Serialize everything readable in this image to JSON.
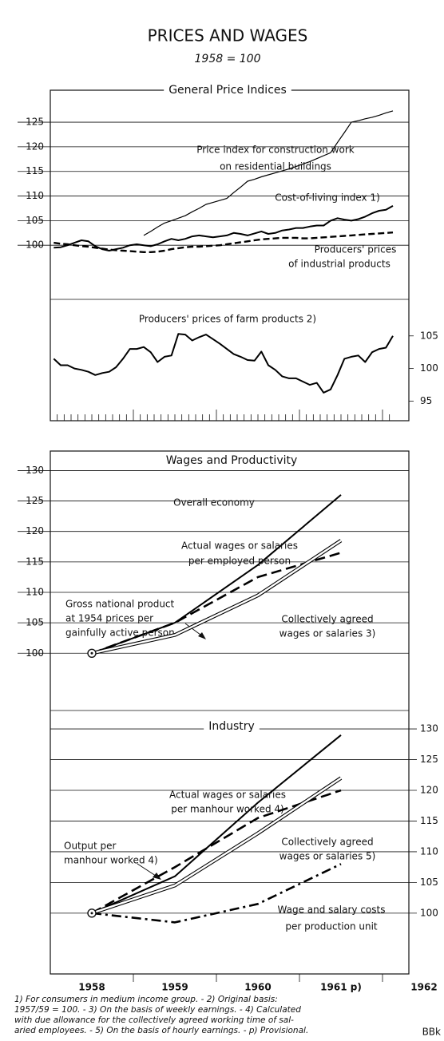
{
  "title": "PRICES AND WAGES",
  "subtitle": "1958 = 100",
  "chart_data": [
    {
      "type": "line",
      "title": "General Price Indices",
      "categories": [
        null,
        null,
        null,
        null,
        null,
        null,
        null,
        null,
        null,
        null,
        null,
        null,
        null,
        null,
        null,
        null,
        null,
        null,
        null,
        null,
        null,
        null,
        null,
        null,
        null,
        null,
        null,
        null,
        null,
        null,
        null,
        null,
        null,
        null,
        null,
        null,
        null,
        null,
        null,
        null,
        null,
        null,
        null,
        null,
        null,
        null,
        null,
        null,
        null,
        null
      ],
      "ylim": [
        89,
        131.5
      ],
      "yticks": [
        100,
        105,
        110,
        115,
        120,
        125
      ],
      "grid": true,
      "axis_side": "left",
      "series": [
        {
          "name": [
            "Price index for construction work",
            "on residential buildings"
          ],
          "color": "#000000",
          "style": "solid",
          "values": [
            null,
            null,
            null,
            null,
            null,
            null,
            null,
            null,
            null,
            null,
            null,
            null,
            null,
            102,
            102.8,
            103.7,
            104.5,
            105,
            105.5,
            106,
            106.8,
            107.5,
            108.3,
            108.7,
            109.1,
            109.5,
            110.7,
            111.8,
            113,
            113.4,
            113.9,
            114.3,
            114.7,
            115.1,
            115.5,
            116,
            116.5,
            117,
            117.6,
            118.2,
            118.8,
            120.9,
            122.9,
            125,
            125.3,
            125.7,
            126,
            126.4,
            126.9,
            127.3
          ]
        },
        {
          "name": [
            "Cost-of-living index 1)"
          ],
          "color": "#000000",
          "style": "solid-bold",
          "values": [
            99.5,
            99.6,
            100.0,
            100.5,
            101.0,
            100.8,
            99.8,
            99.2,
            98.9,
            99.2,
            99.5,
            100.0,
            100.2,
            100.0,
            99.8,
            100.2,
            100.8,
            101.3,
            101.0,
            101.3,
            101.8,
            102.0,
            101.8,
            101.6,
            101.8,
            102.0,
            102.5,
            102.3,
            102.0,
            102.4,
            102.8,
            102.3,
            102.5,
            103.0,
            103.2,
            103.5,
            103.5,
            103.8,
            104.0,
            104.0,
            105.0,
            105.5,
            105.2,
            105.0,
            105.3,
            105.8,
            106.5,
            107.0,
            107.2,
            108.0
          ]
        },
        {
          "name": [
            "Producers' prices",
            "of industrial products"
          ],
          "color": "#000000",
          "style": "dashed",
          "values": [
            100.5,
            100.3,
            100.2,
            100.0,
            99.8,
            99.7,
            99.5,
            99.3,
            99.1,
            99.0,
            98.9,
            98.8,
            98.7,
            98.6,
            98.6,
            98.7,
            98.9,
            99.2,
            99.4,
            99.6,
            99.7,
            99.7,
            99.8,
            99.9,
            100.0,
            100.2,
            100.4,
            100.6,
            100.8,
            101.0,
            101.2,
            101.3,
            101.4,
            101.5,
            101.5,
            101.5,
            101.4,
            101.4,
            101.5,
            101.6,
            101.7,
            101.8,
            101.9,
            102.0,
            102.1,
            102.2,
            102.3,
            102.4,
            102.5,
            102.6
          ]
        }
      ]
    },
    {
      "type": "line",
      "categories": [
        null,
        null,
        null,
        null,
        null,
        null,
        null,
        null,
        null,
        null,
        null,
        null,
        null,
        null,
        null,
        null,
        null,
        null,
        null,
        null,
        null,
        null,
        null,
        null,
        null,
        null,
        null,
        null,
        null,
        null,
        null,
        null,
        null,
        null,
        null,
        null,
        null,
        null,
        null,
        null,
        null,
        null,
        null,
        null,
        null,
        null,
        null,
        null,
        null,
        null
      ],
      "ylim": [
        92,
        110.6
      ],
      "yticks": [
        95,
        100,
        105
      ],
      "grid": false,
      "axis_side": "right",
      "series": [
        {
          "name": [
            "Producers' prices of farm products 2)"
          ],
          "color": "#000000",
          "style": "solid-bold",
          "values": [
            101.5,
            100.5,
            100.5,
            100.0,
            99.8,
            99.5,
            99.0,
            99.3,
            99.5,
            100.2,
            101.5,
            103.0,
            103.0,
            103.3,
            102.5,
            101.0,
            101.8,
            102.0,
            105.3,
            105.2,
            104.3,
            104.8,
            105.2,
            104.5,
            103.8,
            103.0,
            102.2,
            101.8,
            101.3,
            101.2,
            102.6,
            100.5,
            99.8,
            98.8,
            98.5,
            98.5,
            98.0,
            97.5,
            97.8,
            96.3,
            96.8,
            99.0,
            101.5,
            101.8,
            102.0,
            101.0,
            102.5,
            103.0,
            103.2,
            105.0
          ]
        }
      ]
    },
    {
      "type": "line",
      "title": "Wages and Productivity",
      "subtitle": "Overall economy",
      "categories": [
        null,
        null,
        null,
        null,
        null
      ],
      "ylim": [
        90.6,
        133.2
      ],
      "yticks": [
        100,
        105,
        110,
        115,
        120,
        125,
        130
      ],
      "grid": true,
      "axis_side": "left",
      "series": [
        {
          "name": [
            "Actual wages or salaries",
            "per employed person"
          ],
          "color": "#000000",
          "style": "solid-bold",
          "values": [
            100,
            105,
            114.5,
            126,
            null
          ]
        },
        {
          "name": [
            "Gross national product",
            "at 1954 prices per",
            "gainfully active person"
          ],
          "color": "#000000",
          "style": "dashed-bold",
          "values": [
            100,
            105,
            112.5,
            116.5,
            null
          ]
        },
        {
          "name": [
            "Collectively agreed",
            "wages or salaries 3)"
          ],
          "color": "#000000",
          "style": "double",
          "values": [
            100,
            103,
            109.5,
            118.5,
            null
          ]
        }
      ]
    },
    {
      "type": "line",
      "title": "Industry",
      "categories": [
        "1958",
        "1959",
        "1960",
        "1961 p)",
        "1962"
      ],
      "ylim": [
        90.1,
        133
      ],
      "yticks": [
        100,
        105,
        110,
        115,
        120,
        125,
        130
      ],
      "grid": true,
      "axis_side": "right",
      "series": [
        {
          "name": [
            "Actual wages or salaries",
            "per manhour worked 4)"
          ],
          "color": "#000000",
          "style": "solid-bold",
          "values": [
            100,
            106,
            118,
            129,
            null
          ]
        },
        {
          "name": [
            "Output per",
            "manhour worked 4)"
          ],
          "color": "#000000",
          "style": "dashed-bold",
          "values": [
            100,
            107.5,
            115.5,
            120,
            null
          ]
        },
        {
          "name": [
            "Collectively agreed",
            "wages or salaries 5)"
          ],
          "color": "#000000",
          "style": "double",
          "values": [
            100,
            104.5,
            113,
            122,
            null
          ]
        },
        {
          "name": [
            "Wage and salary costs",
            "per production unit"
          ],
          "color": "#000000",
          "style": "dashdot",
          "values": [
            100,
            98.5,
            101.5,
            108,
            null
          ]
        }
      ]
    }
  ],
  "footnotes": [
    "1) For consumers in medium income group. - 2) Original basis:",
    "1957/59 = 100. - 3) On the basis of weekly earnings. - 4) Calculated",
    "with due allowance for the collectively agreed working time of sal-",
    "aried employees. - 5) On the basis of hourly earnings. - p) Provisional."
  ],
  "source": "BBk"
}
